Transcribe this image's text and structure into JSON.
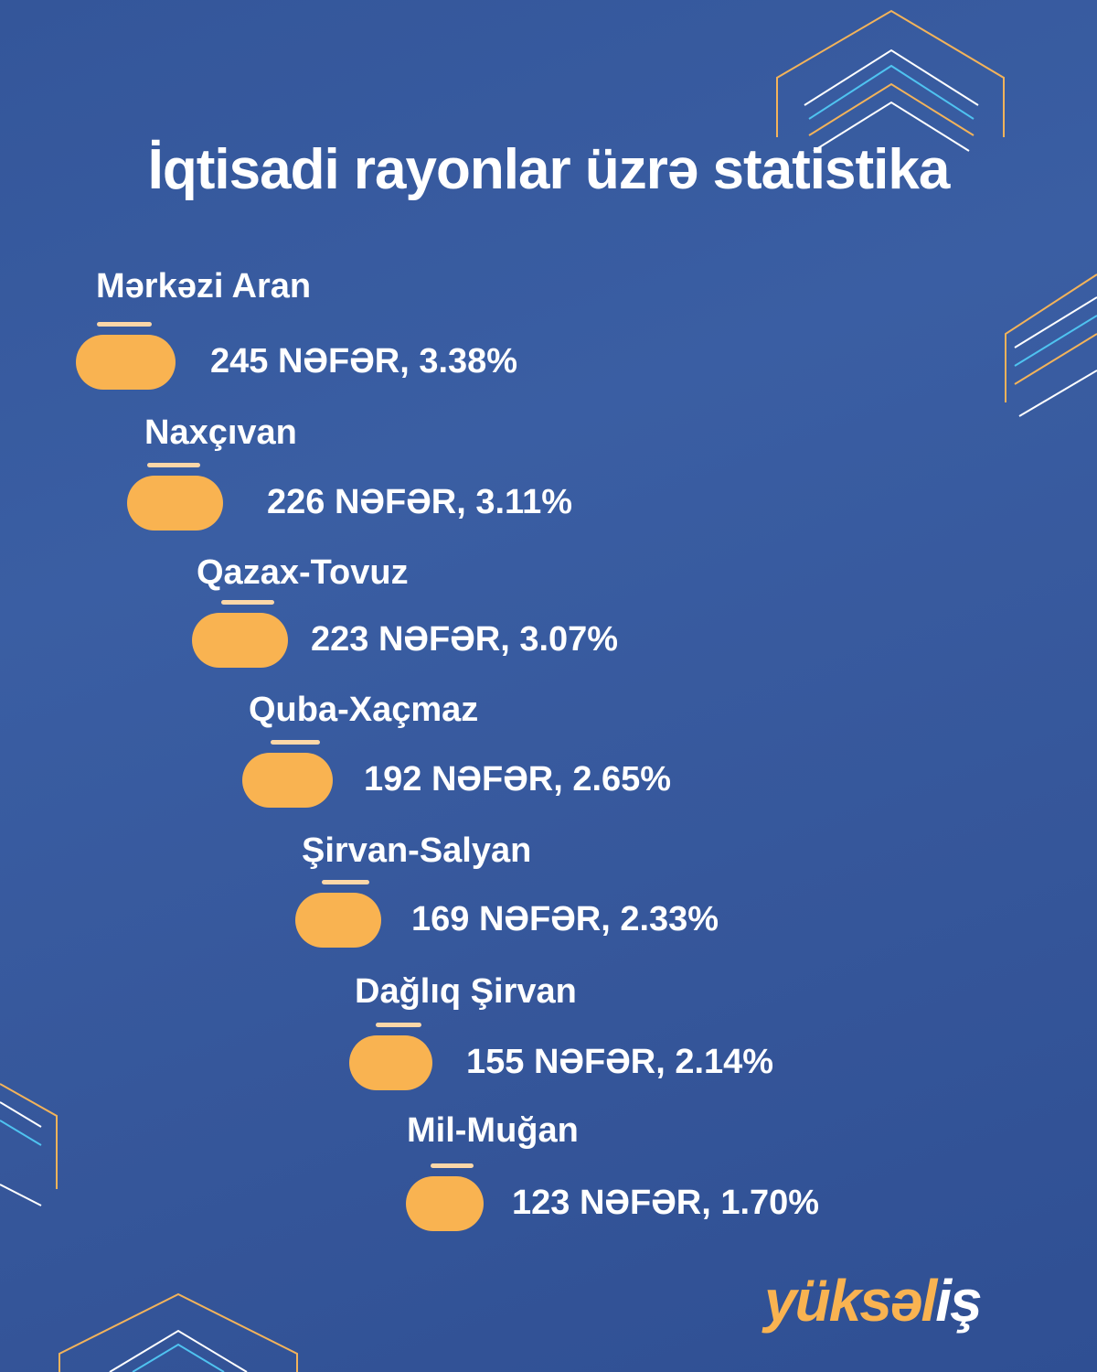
{
  "title": "İqtisadi rayonlar üzrə statistika",
  "colors": {
    "background": "#36579b",
    "pill": "#f9b351",
    "text": "#ffffff",
    "accent_line": "#fbd7a8"
  },
  "chart_data": {
    "type": "bar",
    "title": "İqtisadi rayonlar üzrə statistika",
    "categories": [
      "Mərkəzi Aran",
      "Naxçıvan",
      "Qazax-Tovuz",
      "Quba-Xaçmaz",
      "Şirvan-Salyan",
      "Dağlıq Şirvan",
      "Mil-Muğan"
    ],
    "values": [
      245,
      226,
      223,
      192,
      169,
      155,
      123
    ],
    "percents": [
      3.38,
      3.11,
      3.07,
      2.65,
      2.33,
      2.14,
      1.7
    ],
    "value_labels": [
      "245 NƏFƏR, 3.38%",
      "226 NƏFƏR, 3.11%",
      "223 NƏFƏR, 3.07%",
      "192 NƏFƏR, 2.65%",
      "169 NƏFƏR, 2.33%",
      "155 NƏFƏR, 2.14%",
      "123 NƏFƏR, 1.70%"
    ]
  },
  "logo": {
    "text_main": "yüksəl",
    "text_end": "iş"
  }
}
